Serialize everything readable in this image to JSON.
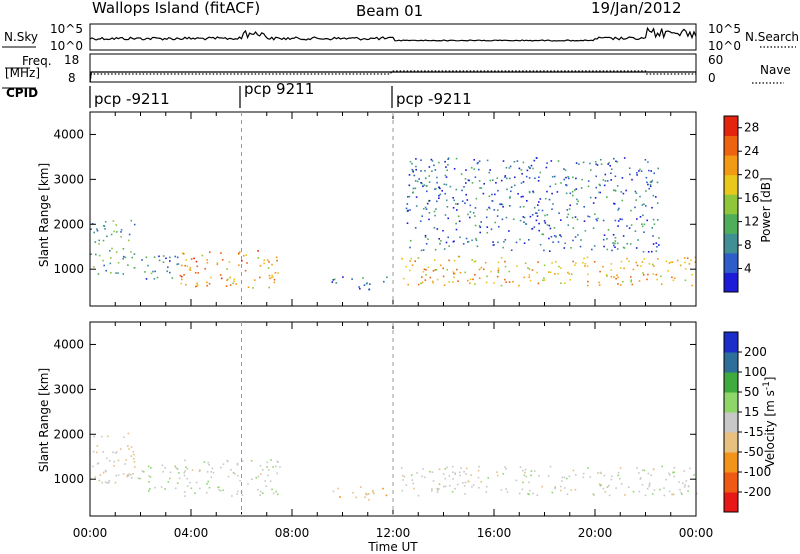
{
  "header": {
    "title": "Wallops Island (fitACF)",
    "beam": "Beam 01",
    "date": "19/Jan/2012"
  },
  "top_panels": {
    "nsky_label": "N.Sky",
    "nsky_ticks": [
      "10^5",
      "10^0"
    ],
    "nsearch_label": "N.Search",
    "nsearch_ticks": [
      "10^5",
      "10^0"
    ],
    "freq_label_1": "Freq.",
    "freq_label_2": "[MHz]",
    "freq_ticks": [
      "18",
      "8"
    ],
    "nave_label": "Nave",
    "nave_ticks": [
      "60",
      "0"
    ],
    "cpid_label": "CPID",
    "cpid_segments": [
      "pcp -9211",
      "pcp 9211",
      "pcp -9211"
    ]
  },
  "colors": {
    "power": [
      "#1b1bd8",
      "#2e5cc8",
      "#3f8f95",
      "#4fae5a",
      "#8fc63a",
      "#e8c81a",
      "#f29a14",
      "#ee6310",
      "#e52410"
    ],
    "velocity": [
      "#e81818",
      "#ee5a14",
      "#f2931a",
      "#e8c080",
      "#c8c8c8",
      "#8fd66a",
      "#3faa3f",
      "#2e6e9a",
      "#1b2ec8"
    ]
  },
  "chart_data": [
    {
      "type": "heatmap",
      "title": "Power",
      "xlabel": "Time UT",
      "ylabel": "Slant Range [km]",
      "x_ticks": [
        "00:00",
        "04:00",
        "08:00",
        "12:00",
        "16:00",
        "20:00",
        "00:00"
      ],
      "xlim_hours": [
        0,
        24
      ],
      "y_ticks": [
        1000,
        2000,
        3000,
        4000
      ],
      "ylim": [
        180,
        4500
      ],
      "colorbar": {
        "label": "Power [dB]",
        "ticks": [
          4,
          8,
          12,
          16,
          20,
          24,
          28
        ],
        "range": [
          0,
          30
        ]
      },
      "echo_regions": [
        {
          "t_start": 0.0,
          "t_end": 1.8,
          "range_start": 900,
          "range_end": 2100,
          "power_db": 10
        },
        {
          "t_start": 1.8,
          "t_end": 3.5,
          "range_start": 750,
          "range_end": 1350,
          "power_db": 8
        },
        {
          "t_start": 3.5,
          "t_end": 7.5,
          "range_start": 600,
          "range_end": 1450,
          "power_db": 22
        },
        {
          "t_start": 9.5,
          "t_end": 11.8,
          "range_start": 550,
          "range_end": 850,
          "power_db": 6
        },
        {
          "t_start": 12.3,
          "t_end": 24.0,
          "range_start": 650,
          "range_end": 1300,
          "power_db": 20
        },
        {
          "t_start": 12.5,
          "t_end": 22.5,
          "range_start": 1400,
          "range_end": 3500,
          "power_db": 6
        }
      ]
    },
    {
      "type": "heatmap",
      "title": "Velocity",
      "xlabel": "Time UT",
      "ylabel": "Slant Range [km]",
      "x_ticks": [
        "00:00",
        "04:00",
        "08:00",
        "12:00",
        "16:00",
        "20:00",
        "00:00"
      ],
      "xlim_hours": [
        0,
        24
      ],
      "y_ticks": [
        1000,
        2000,
        3000,
        4000
      ],
      "ylim": [
        180,
        4500
      ],
      "colorbar": {
        "label": "Velocity [m s^-1]",
        "ticks": [
          200,
          100,
          50,
          15,
          -15,
          -50,
          -100,
          -200
        ],
        "range": [
          -250,
          250
        ]
      },
      "echo_regions": [
        {
          "t_start": 0.0,
          "t_end": 1.8,
          "range_start": 900,
          "range_end": 2100,
          "velocity": -20
        },
        {
          "t_start": 1.8,
          "t_end": 3.5,
          "range_start": 750,
          "range_end": 1350,
          "velocity": 40
        },
        {
          "t_start": 3.5,
          "t_end": 7.5,
          "range_start": 600,
          "range_end": 1450,
          "velocity": 10
        },
        {
          "t_start": 9.5,
          "t_end": 11.8,
          "range_start": 550,
          "range_end": 850,
          "velocity": -60
        },
        {
          "t_start": 12.3,
          "t_end": 24.0,
          "range_start": 650,
          "range_end": 1300,
          "velocity": 5
        }
      ]
    }
  ],
  "time_axis_label": "Time UT"
}
